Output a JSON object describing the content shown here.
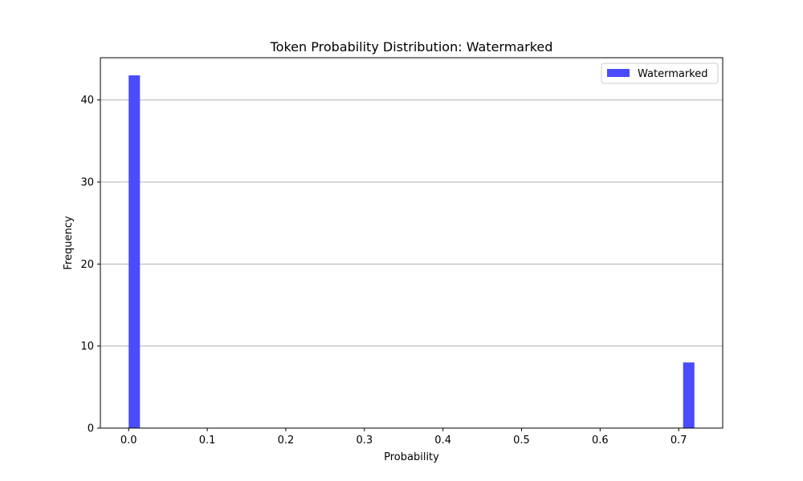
{
  "chart_data": {
    "type": "bar",
    "title": "Token Probability Distribution: Watermarked",
    "xlabel": "Probability",
    "ylabel": "Frequency",
    "xlim": [
      -0.036,
      0.756
    ],
    "ylim": [
      0,
      45.15
    ],
    "x_ticks": [
      0.0,
      0.1,
      0.2,
      0.3,
      0.4,
      0.5,
      0.6,
      0.7
    ],
    "x_tick_labels": [
      "0.0",
      "0.1",
      "0.2",
      "0.3",
      "0.4",
      "0.5",
      "0.6",
      "0.7"
    ],
    "y_ticks": [
      0,
      10,
      20,
      30,
      40
    ],
    "y_tick_labels": [
      "0",
      "10",
      "20",
      "30",
      "40"
    ],
    "grid": "y-major",
    "legend_position": "upper right",
    "series": [
      {
        "name": "Watermarked",
        "color": "#4b4bff",
        "bins": [
          {
            "x0": 0.0,
            "x1": 0.0144,
            "value": 43
          },
          {
            "x0": 0.7056,
            "x1": 0.72,
            "value": 8
          }
        ]
      }
    ]
  }
}
